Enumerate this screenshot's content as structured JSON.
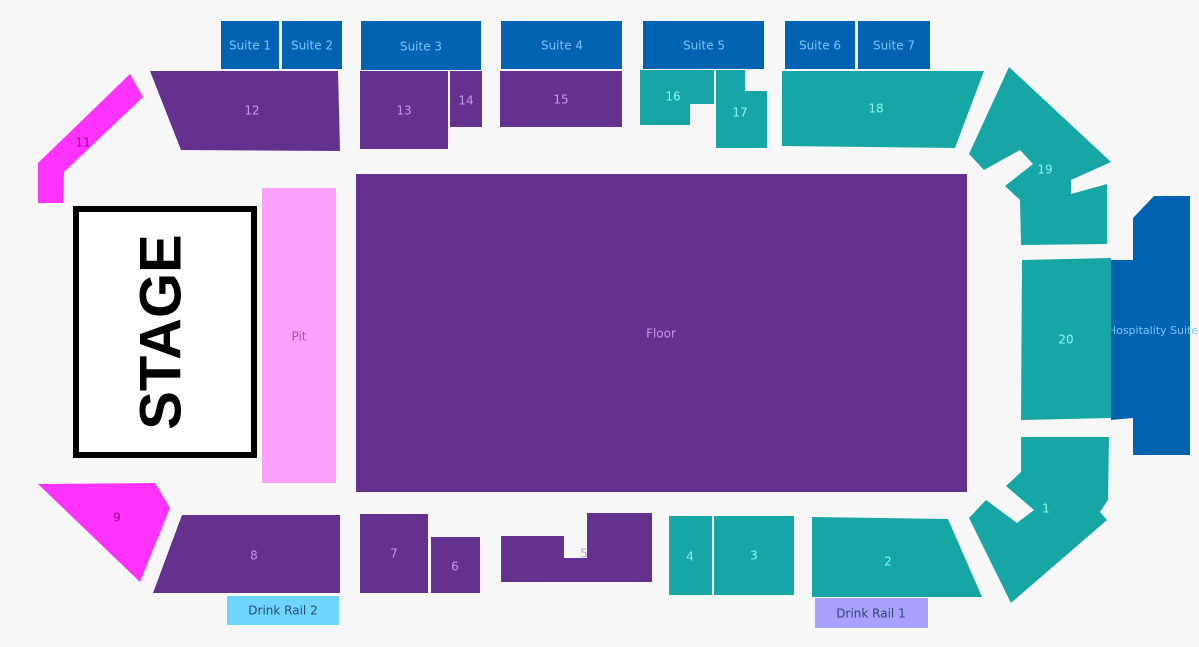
{
  "map": {
    "stage": "STAGE",
    "colors": {
      "lower_bowl": "#65318f",
      "upper_bowl": "#17a6a6",
      "suites": "#0063b1",
      "side": "#ff33ff",
      "pit": "#f9a0f9",
      "drink_rail_2": "#6dd5ff",
      "drink_rail_1": "#aaa0ff",
      "background": "#f7f7f7"
    },
    "suites": [
      "Suite 1",
      "Suite 2",
      "Suite 3",
      "Suite 4",
      "Suite 5",
      "Suite 6",
      "Suite 7"
    ],
    "hospitality": "Hospitality Suite",
    "floor": "Floor",
    "pit": "Pit",
    "sections": {
      "s1": "1",
      "s2": "2",
      "s3": "3",
      "s4": "4",
      "s5": "5",
      "s6": "6",
      "s7": "7",
      "s8": "8",
      "s9": "9",
      "s11": "11",
      "s12": "12",
      "s13": "13",
      "s14": "14",
      "s15": "15",
      "s16": "16",
      "s17": "17",
      "s18": "18",
      "s19": "19",
      "s20": "20"
    },
    "drink_rail_1": "Drink Rail 1",
    "drink_rail_2": "Drink Rail 2"
  }
}
